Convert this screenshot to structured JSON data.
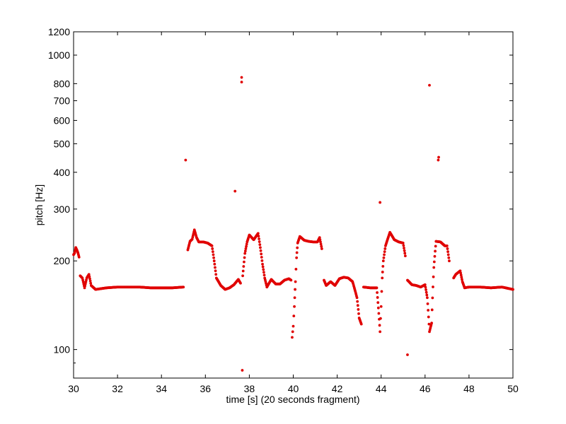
{
  "chart_data": {
    "type": "scatter",
    "xlabel": "time [s] (20 seconds fragment)",
    "ylabel": "pitch [Hz]",
    "xlim": [
      30,
      50
    ],
    "ylim": [
      80,
      1200
    ],
    "yscale": "log",
    "grid": false,
    "marker_color": "#e00000",
    "x_ticks": [
      "30",
      "32",
      "34",
      "36",
      "38",
      "40",
      "42",
      "44",
      "46",
      "48",
      "50"
    ],
    "y_ticks": [
      "100",
      "200",
      "300",
      "400",
      "500",
      "600",
      "700",
      "800",
      "1000",
      "1200"
    ],
    "y_minor_ticks": [
      90
    ],
    "segments": [
      {
        "x": [
          30.0,
          30.05,
          30.1,
          30.15,
          30.2,
          30.25
        ],
        "y": [
          210,
          213,
          222,
          218,
          213,
          206
        ]
      },
      {
        "x": [
          30.3,
          30.4,
          30.5,
          30.6,
          30.7,
          30.8,
          31.0,
          31.5,
          32.0,
          32.5,
          33.0,
          33.5,
          34.0,
          34.5,
          35.0
        ],
        "y": [
          178,
          175,
          162,
          175,
          180,
          165,
          160,
          162,
          163,
          163,
          163,
          162,
          162,
          162,
          163
        ]
      },
      {
        "x": [
          35.2,
          35.3,
          35.4,
          35.5,
          35.6,
          35.7,
          35.9,
          36.1,
          36.3,
          36.5,
          36.7,
          36.9,
          37.1,
          37.3,
          37.5,
          37.6
        ],
        "y": [
          218,
          233,
          237,
          255,
          240,
          232,
          232,
          230,
          225,
          175,
          165,
          160,
          162,
          166,
          173,
          168
        ]
      },
      {
        "x": [
          37.7,
          37.8,
          37.9,
          38.0,
          38.2,
          38.4,
          38.5,
          38.6,
          38.7,
          38.8,
          38.9,
          39.0,
          39.2,
          39.4,
          39.6,
          39.8,
          39.9
        ],
        "y": [
          178,
          212,
          232,
          245,
          236,
          248,
          222,
          195,
          175,
          163,
          168,
          173,
          167,
          167,
          172,
          174,
          172
        ]
      },
      {
        "x": [
          39.95,
          40.0,
          40.05,
          40.1,
          40.15,
          40.2,
          40.3,
          40.5,
          40.7,
          40.9,
          41.1,
          41.2,
          41.3
        ],
        "y": [
          110,
          120,
          140,
          170,
          205,
          230,
          242,
          235,
          233,
          232,
          232,
          240,
          220
        ]
      },
      {
        "x": [
          41.4,
          41.5,
          41.7,
          41.9,
          42.1,
          42.3,
          42.5,
          42.7,
          42.9,
          43.0,
          43.1
        ],
        "y": [
          172,
          165,
          170,
          165,
          174,
          176,
          175,
          170,
          150,
          128,
          122
        ]
      },
      {
        "x": [
          43.2,
          43.5,
          43.8,
          43.95,
          44.0,
          44.05,
          44.1,
          44.2,
          44.4,
          44.6,
          44.8,
          45.0,
          45.1
        ],
        "y": [
          163,
          162,
          162,
          115,
          140,
          175,
          200,
          225,
          250,
          236,
          232,
          230,
          208
        ]
      },
      {
        "x": [
          45.2,
          45.4,
          45.6,
          45.8,
          46.0,
          46.1,
          46.2,
          46.3,
          46.4,
          46.5,
          46.7,
          46.9,
          47.0,
          47.1
        ],
        "y": [
          172,
          166,
          165,
          163,
          166,
          150,
          115,
          123,
          190,
          233,
          232,
          225,
          225,
          200
        ]
      },
      {
        "x": [
          47.3,
          47.4,
          47.6,
          47.7,
          47.8,
          48.0,
          48.5,
          49.0,
          49.5,
          50.0
        ],
        "y": [
          175,
          180,
          185,
          170,
          162,
          163,
          163,
          162,
          163,
          160
        ]
      }
    ],
    "outliers": {
      "x": [
        35.1,
        37.35,
        37.65,
        37.65,
        37.68,
        43.95,
        45.2,
        46.2,
        46.6,
        46.62
      ],
      "y": [
        440,
        345,
        810,
        840,
        85,
        316,
        96,
        790,
        440,
        450
      ]
    }
  }
}
